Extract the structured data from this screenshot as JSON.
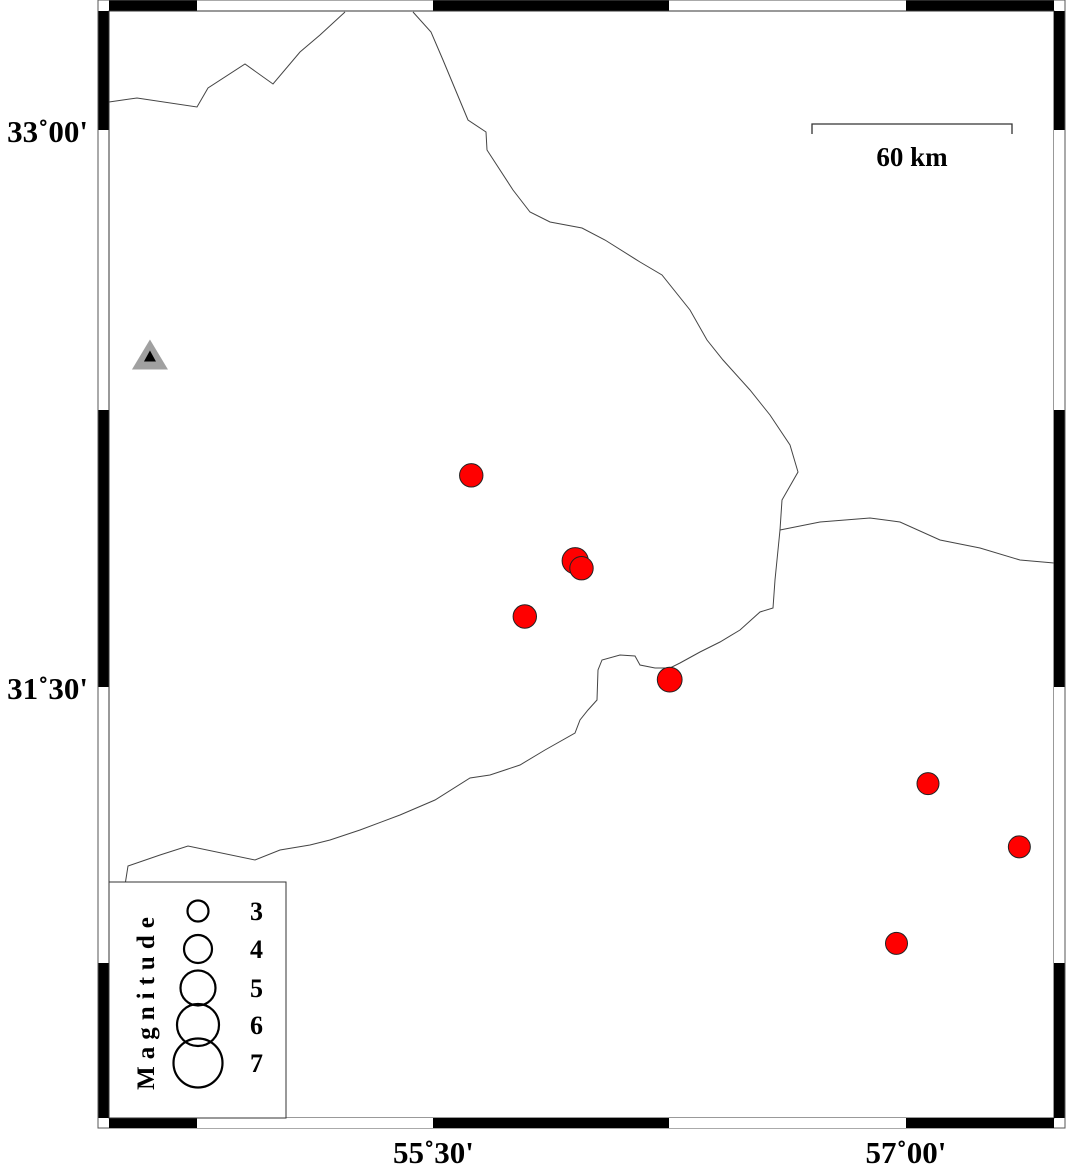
{
  "map": {
    "extent": {
      "lon_min": 54.47,
      "lon_max": 57.47,
      "lat_min": 30.34,
      "lat_max": 33.32
    },
    "axis_labels": {
      "lat": [
        {
          "value": 33.0,
          "text": "33˚00'"
        },
        {
          "value": 31.5,
          "text": "31˚30'"
        }
      ],
      "lon": [
        {
          "value": 55.5,
          "text": "55˚30'"
        },
        {
          "value": 57.0,
          "text": "57˚00'"
        }
      ]
    },
    "scale_bar": {
      "label": "60 km",
      "length_km": 60
    },
    "station": {
      "lon": 54.6,
      "lat": 32.39,
      "color": "#a0a0a0",
      "inner_color": "#000000",
      "icon": "triangle"
    },
    "event_color": "#ff0000",
    "events": [
      {
        "lon": 55.62,
        "lat": 32.07,
        "mag": 3.2
      },
      {
        "lon": 55.95,
        "lat": 31.84,
        "mag": 3.6
      },
      {
        "lon": 55.97,
        "lat": 31.82,
        "mag": 3.2
      },
      {
        "lon": 55.79,
        "lat": 31.69,
        "mag": 3.2
      },
      {
        "lon": 56.25,
        "lat": 31.52,
        "mag": 3.4
      },
      {
        "lon": 57.07,
        "lat": 31.24,
        "mag": 3.0
      },
      {
        "lon": 57.36,
        "lat": 31.07,
        "mag": 3.0
      },
      {
        "lon": 56.97,
        "lat": 30.81,
        "mag": 3.0
      }
    ]
  },
  "legend": {
    "title": "Magnitude",
    "items": [
      {
        "mag": 3,
        "label": "3"
      },
      {
        "mag": 4,
        "label": "4"
      },
      {
        "mag": 5,
        "label": "5"
      },
      {
        "mag": 6,
        "label": "6"
      },
      {
        "mag": 7,
        "label": "7"
      }
    ]
  }
}
